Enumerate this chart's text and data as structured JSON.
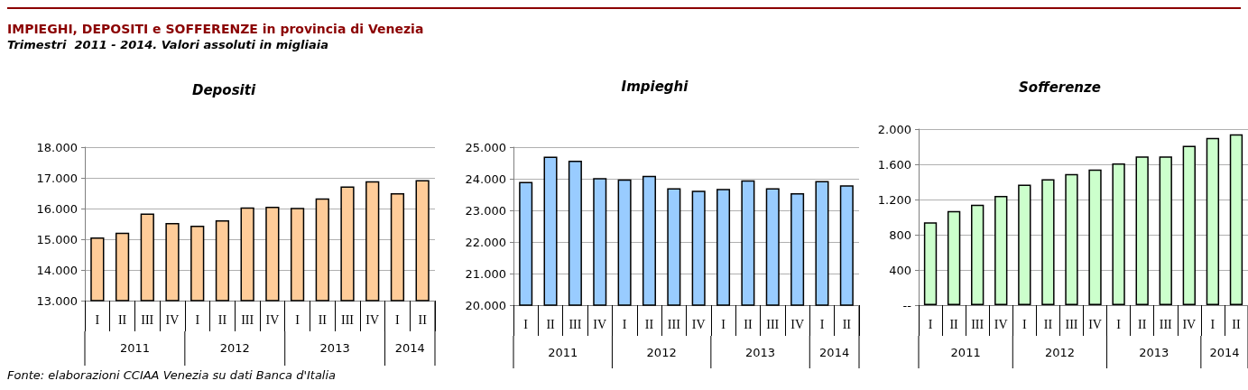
{
  "chart_data": [
    {
      "type": "other",
      "title": "IMPIEGHI, DEPOSITI e SOFFERENZE in provincia di Venezia",
      "subtitle": "Trimestri  2011 - 2014. Valori assoluti in migliaia",
      "annotations": [
        "Fonte: elaborazioni CCIAA Venezia su dati Banca d'Italia"
      ]
    },
    {
      "type": "bar",
      "title": "Depositi",
      "categories": [
        "I",
        "II",
        "III",
        "IV",
        "I",
        "II",
        "III",
        "IV",
        "I",
        "II",
        "III",
        "IV",
        "I",
        "II"
      ],
      "annotations": [
        "2011",
        "2012",
        "2013",
        "2014"
      ],
      "color": "#ffcc99",
      "values": [
        15060,
        15210,
        15840,
        15530,
        15440,
        15620,
        16040,
        16060,
        16020,
        16330,
        16720,
        16890,
        16500,
        16930
      ],
      "ylim": [
        13000,
        18000
      ],
      "yticks": [
        {
          "value": 13000,
          "label": "13.000"
        },
        {
          "value": 14000,
          "label": "14.000"
        },
        {
          "value": 15000,
          "label": "15.000"
        },
        {
          "value": 16000,
          "label": "16.000"
        },
        {
          "value": 17000,
          "label": "17.000"
        },
        {
          "value": 18000,
          "label": "18.000"
        }
      ],
      "grid": "y"
    },
    {
      "type": "bar",
      "title": "Impieghi",
      "categories": [
        "I",
        "II",
        "III",
        "IV",
        "I",
        "II",
        "III",
        "IV",
        "I",
        "II",
        "III",
        "IV",
        "I",
        "II"
      ],
      "annotations": [
        "2011",
        "2012",
        "2013",
        "2014"
      ],
      "color": "#99ccff",
      "values": [
        23900,
        24700,
        24570,
        24020,
        23980,
        24090,
        23700,
        23620,
        23680,
        23950,
        23700,
        23540,
        23930,
        23790
      ],
      "ylim": [
        20000,
        25000
      ],
      "yticks": [
        {
          "value": 20000,
          "label": "20.000"
        },
        {
          "value": 21000,
          "label": "21.000"
        },
        {
          "value": 22000,
          "label": "22.000"
        },
        {
          "value": 23000,
          "label": "23.000"
        },
        {
          "value": 24000,
          "label": "24.000"
        },
        {
          "value": 25000,
          "label": "25.000"
        }
      ],
      "grid": "y"
    },
    {
      "type": "bar",
      "title": "Sofferenze",
      "categories": [
        "I",
        "II",
        "III",
        "IV",
        "I",
        "II",
        "III",
        "IV",
        "I",
        "II",
        "III",
        "IV",
        "I",
        "II"
      ],
      "annotations": [
        "2011",
        "2012",
        "2013",
        "2014"
      ],
      "color": "#ccffcc",
      "values": [
        940,
        1070,
        1140,
        1240,
        1370,
        1430,
        1490,
        1540,
        1610,
        1690,
        1690,
        1810,
        1900,
        1940
      ],
      "ylim": [
        0,
        2000
      ],
      "yticks": [
        {
          "value": 0,
          "label": "--"
        },
        {
          "value": 400,
          "label": "400"
        },
        {
          "value": 800,
          "label": "800"
        },
        {
          "value": 1200,
          "label": "1.200"
        },
        {
          "value": 1600,
          "label": "1.600"
        },
        {
          "value": 2000,
          "label": "2.000"
        }
      ],
      "grid": "y"
    }
  ]
}
